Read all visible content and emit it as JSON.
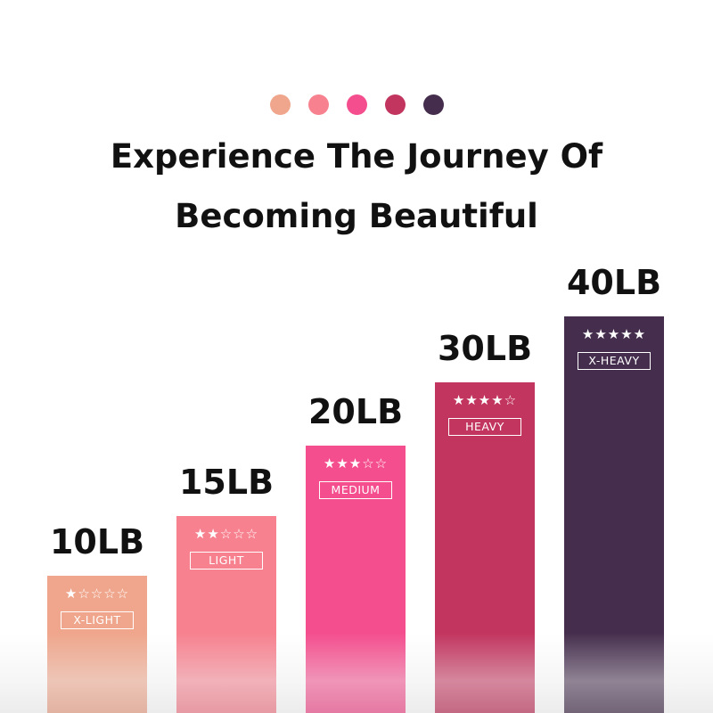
{
  "header": {
    "dot_colors": [
      "#EFA68C",
      "#F7818F",
      "#F44E8E",
      "#C2355F",
      "#452E4D"
    ],
    "title_line1": "Experience The Journey Of",
    "title_line2": "Becoming Beautiful"
  },
  "chart_data": {
    "type": "bar",
    "categories": [
      "10LB",
      "15LB",
      "20LB",
      "30LB",
      "40LB"
    ],
    "values": [
      10,
      15,
      20,
      30,
      40
    ],
    "levels": [
      "X-LIGHT",
      "LIGHT",
      "MEDIUM",
      "HEAVY",
      "X-HEAVY"
    ],
    "stars": [
      1,
      2,
      3,
      4,
      5
    ],
    "max_stars": 5,
    "colors": [
      "#EFA68C",
      "#F7818F",
      "#F44E8E",
      "#C2355F",
      "#452E4D"
    ],
    "title": "",
    "xlabel": "",
    "ylabel": "",
    "grid": false
  }
}
